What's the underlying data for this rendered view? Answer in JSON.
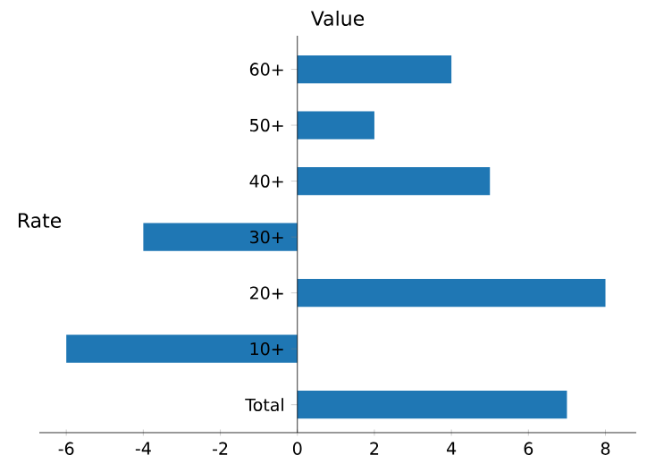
{
  "chart_data": {
    "type": "bar",
    "orientation": "horizontal",
    "title": "Value",
    "ylabel": "Rate",
    "categories": [
      "60+",
      "50+",
      "40+",
      "30+",
      "20+",
      "10+",
      "Total"
    ],
    "values": [
      4,
      2,
      5,
      -4,
      8,
      -6,
      7
    ],
    "color": "#1f77b4",
    "xlim": [
      -6.7,
      8.8
    ],
    "xticks": [
      -6,
      -4,
      -2,
      0,
      2,
      4,
      6,
      8
    ]
  }
}
